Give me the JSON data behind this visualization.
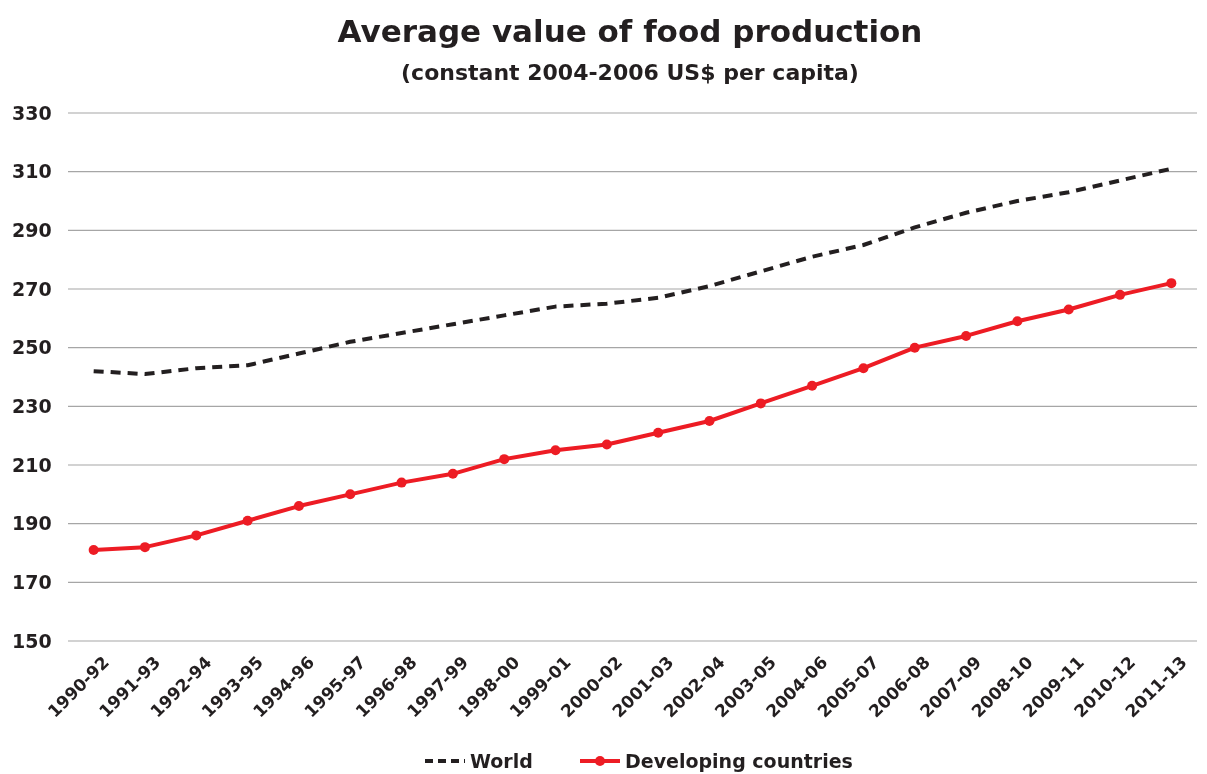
{
  "chart_data": {
    "type": "line",
    "title": "Average value of food production",
    "subtitle": "(constant 2004-2006 US$ per capita)",
    "categories": [
      "1990-92",
      "1991-93",
      "1992-94",
      "1993-95",
      "1994-96",
      "1995-97",
      "1996-98",
      "1997-99",
      "1998-00",
      "1999-01",
      "2000-02",
      "2001-03",
      "2002-04",
      "2003-05",
      "2004-06",
      "2005-07",
      "2006-08",
      "2007-09",
      "2008-10",
      "2009-11",
      "2010-12",
      "2011-13"
    ],
    "series": [
      {
        "name": "World",
        "color": "#231f20",
        "line_style": "dashed",
        "marker": "none",
        "values": [
          242,
          241,
          243,
          244,
          248,
          252,
          255,
          258,
          261,
          264,
          265,
          267,
          271,
          276,
          281,
          285,
          291,
          296,
          300,
          303,
          307,
          311
        ]
      },
      {
        "name": "Developing countries",
        "color": "#ed1c24",
        "line_style": "solid",
        "marker": "circle",
        "values": [
          181,
          182,
          186,
          191,
          196,
          200,
          204,
          207,
          212,
          215,
          217,
          221,
          225,
          231,
          237,
          243,
          250,
          254,
          259,
          263,
          268,
          272
        ]
      }
    ],
    "ylim": [
      150,
      330
    ],
    "yticks": [
      150,
      170,
      190,
      210,
      230,
      250,
      270,
      290,
      310,
      330
    ],
    "grid": "y",
    "legend": "bottom"
  }
}
